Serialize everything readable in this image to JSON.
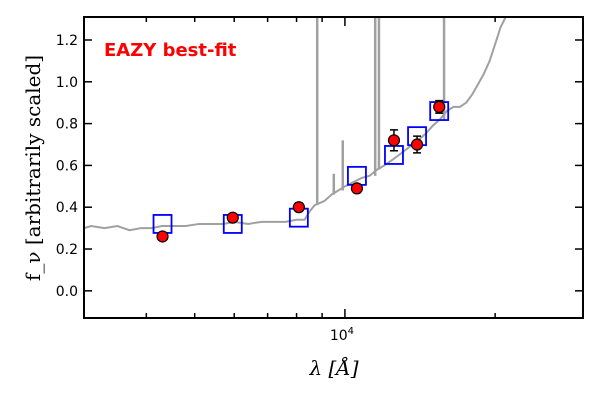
{
  "chart_data": {
    "type": "scatter",
    "title": "",
    "annotation": "EAZY best-fit",
    "xlabel": "λ [Å]",
    "ylabel": "f_ν [arbitrarily scaled]",
    "xscale": "log",
    "xlim": [
      3000,
      30000
    ],
    "ylim": [
      -0.13,
      1.31
    ],
    "xticks": [
      {
        "value": 10000,
        "label": "10^4"
      }
    ],
    "xminor": [
      4000,
      5000,
      6000,
      7000,
      8000,
      9000,
      20000
    ],
    "yticks": [
      0.0,
      0.2,
      0.4,
      0.6,
      0.8,
      1.0,
      1.2
    ],
    "ytick_labels": [
      "0.0",
      "0.2",
      "0.4",
      "0.6",
      "0.8",
      "1.0",
      "1.2"
    ],
    "colors": {
      "spectrum": "#a0a0a0",
      "model": "#0000ff",
      "data": "#ff0000",
      "annotation": "#ff0000"
    },
    "series": [
      {
        "name": "observed photometry",
        "x": [
          4310,
          5960,
          8085,
          10570,
          12540,
          13950,
          15450
        ],
        "y": [
          0.26,
          0.35,
          0.4,
          0.49,
          0.72,
          0.7,
          0.88
        ],
        "yerr": [
          0.015,
          0.012,
          0.02,
          0.02,
          0.05,
          0.04,
          0.03
        ]
      },
      {
        "name": "model photometry",
        "x": [
          4310,
          5960,
          8085,
          10570,
          12540,
          13950,
          15450
        ],
        "y": [
          0.32,
          0.32,
          0.35,
          0.55,
          0.65,
          0.74,
          0.86
        ]
      },
      {
        "name": "best-fit spectrum",
        "x": [
          3000,
          3100,
          3300,
          3500,
          3700,
          3900,
          4100,
          4300,
          4500,
          4800,
          5100,
          5400,
          5700,
          6000,
          6400,
          6800,
          7200,
          7600,
          8000,
          8300,
          8500,
          8700,
          8900,
          9100,
          9400,
          9700,
          10000,
          10400,
          10800,
          11200,
          11600,
          12000,
          12500,
          13000,
          13500,
          14000,
          14500,
          15000,
          15500,
          16000,
          16500,
          17000,
          17500,
          18000,
          18500,
          19000,
          19500,
          20000,
          20500,
          21000,
          21500
        ],
        "y": [
          0.3,
          0.31,
          0.3,
          0.31,
          0.29,
          0.3,
          0.3,
          0.31,
          0.31,
          0.31,
          0.32,
          0.32,
          0.32,
          0.33,
          0.32,
          0.33,
          0.33,
          0.33,
          0.34,
          0.34,
          0.38,
          0.41,
          0.42,
          0.43,
          0.46,
          0.48,
          0.5,
          0.52,
          0.54,
          0.55,
          0.58,
          0.6,
          0.63,
          0.66,
          0.69,
          0.72,
          0.75,
          0.79,
          0.82,
          0.86,
          0.88,
          0.88,
          0.9,
          0.94,
          0.99,
          1.04,
          1.1,
          1.18,
          1.26,
          1.31,
          1.31
        ],
        "lines": [
          {
            "x": 8800,
            "y": 1.31
          },
          {
            "x": 9500,
            "y": 0.56
          },
          {
            "x": 9900,
            "y": 0.72
          },
          {
            "x": 11500,
            "y": 1.31
          },
          {
            "x": 11700,
            "y": 1.31
          },
          {
            "x": 15800,
            "y": 1.31
          }
        ]
      }
    ]
  }
}
